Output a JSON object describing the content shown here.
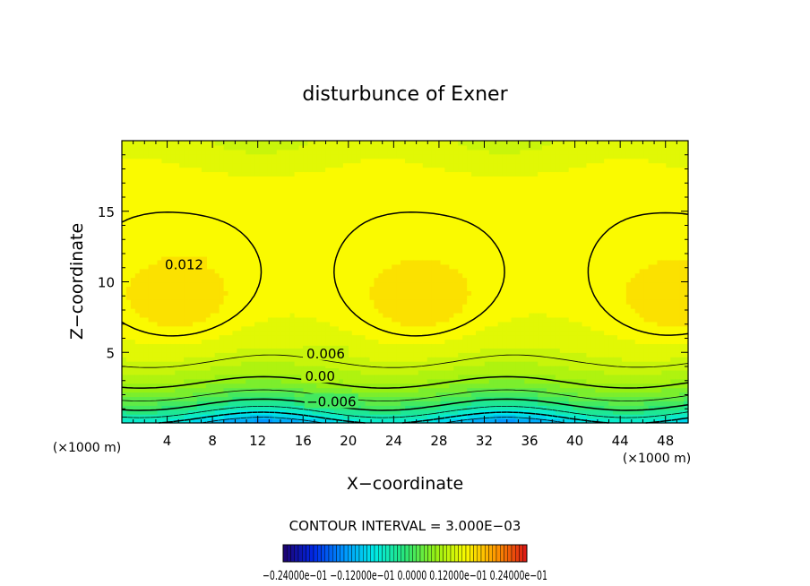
{
  "chart_data": {
    "type": "contour",
    "title": "disturbunce of Exner",
    "xlabel": "X−coordinate",
    "ylabel": "Z−coordinate",
    "x_unit_left": "(×1000 m)",
    "x_unit_right": "(×1000 m)",
    "xlim": [
      0,
      50
    ],
    "ylim": [
      0,
      20
    ],
    "x_ticks": [
      4,
      8,
      12,
      16,
      20,
      24,
      28,
      32,
      36,
      40,
      44,
      48
    ],
    "y_ticks": [
      5,
      10,
      15
    ],
    "contour_interval_text": "CONTOUR INTERVAL = 3.000E−03",
    "contour_labels": [
      {
        "text": "0.012",
        "x": 5.5,
        "z": 11.2
      },
      {
        "text": "0.006",
        "x": 18.0,
        "z": 4.9
      },
      {
        "text": "0.00",
        "x": 17.5,
        "z": 3.3
      },
      {
        "text": "−0.006",
        "x": 18.5,
        "z": 1.5
      }
    ],
    "field_maxima": [
      {
        "x": 5.0,
        "z": 8.5,
        "value": 0.0135
      },
      {
        "x": 26.5,
        "z": 8.5,
        "value": 0.0133
      },
      {
        "x": 49.0,
        "z": 8.5,
        "value": 0.0133
      }
    ],
    "colorbar": {
      "min": -0.024,
      "max": 0.024,
      "tick_labels_text": "−0.24000e−01 −0.12000e−01 0.0000 0.12000e−01 0.24000e−01"
    }
  }
}
